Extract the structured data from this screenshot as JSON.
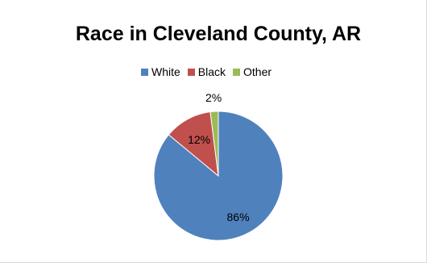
{
  "chart_data": {
    "type": "pie",
    "title": "Race in Cleveland County, AR",
    "categories": [
      "White",
      "Black",
      "Other"
    ],
    "values": [
      86,
      12,
      2
    ],
    "data_labels": [
      "86%",
      "12%",
      "2%"
    ],
    "colors": [
      "#4f81bd",
      "#c0504d",
      "#9bbb59"
    ],
    "legend_position": "top",
    "legend": [
      {
        "label": "White",
        "color": "#4f81bd"
      },
      {
        "label": "Black",
        "color": "#c0504d"
      },
      {
        "label": "Other",
        "color": "#9bbb59"
      }
    ]
  }
}
